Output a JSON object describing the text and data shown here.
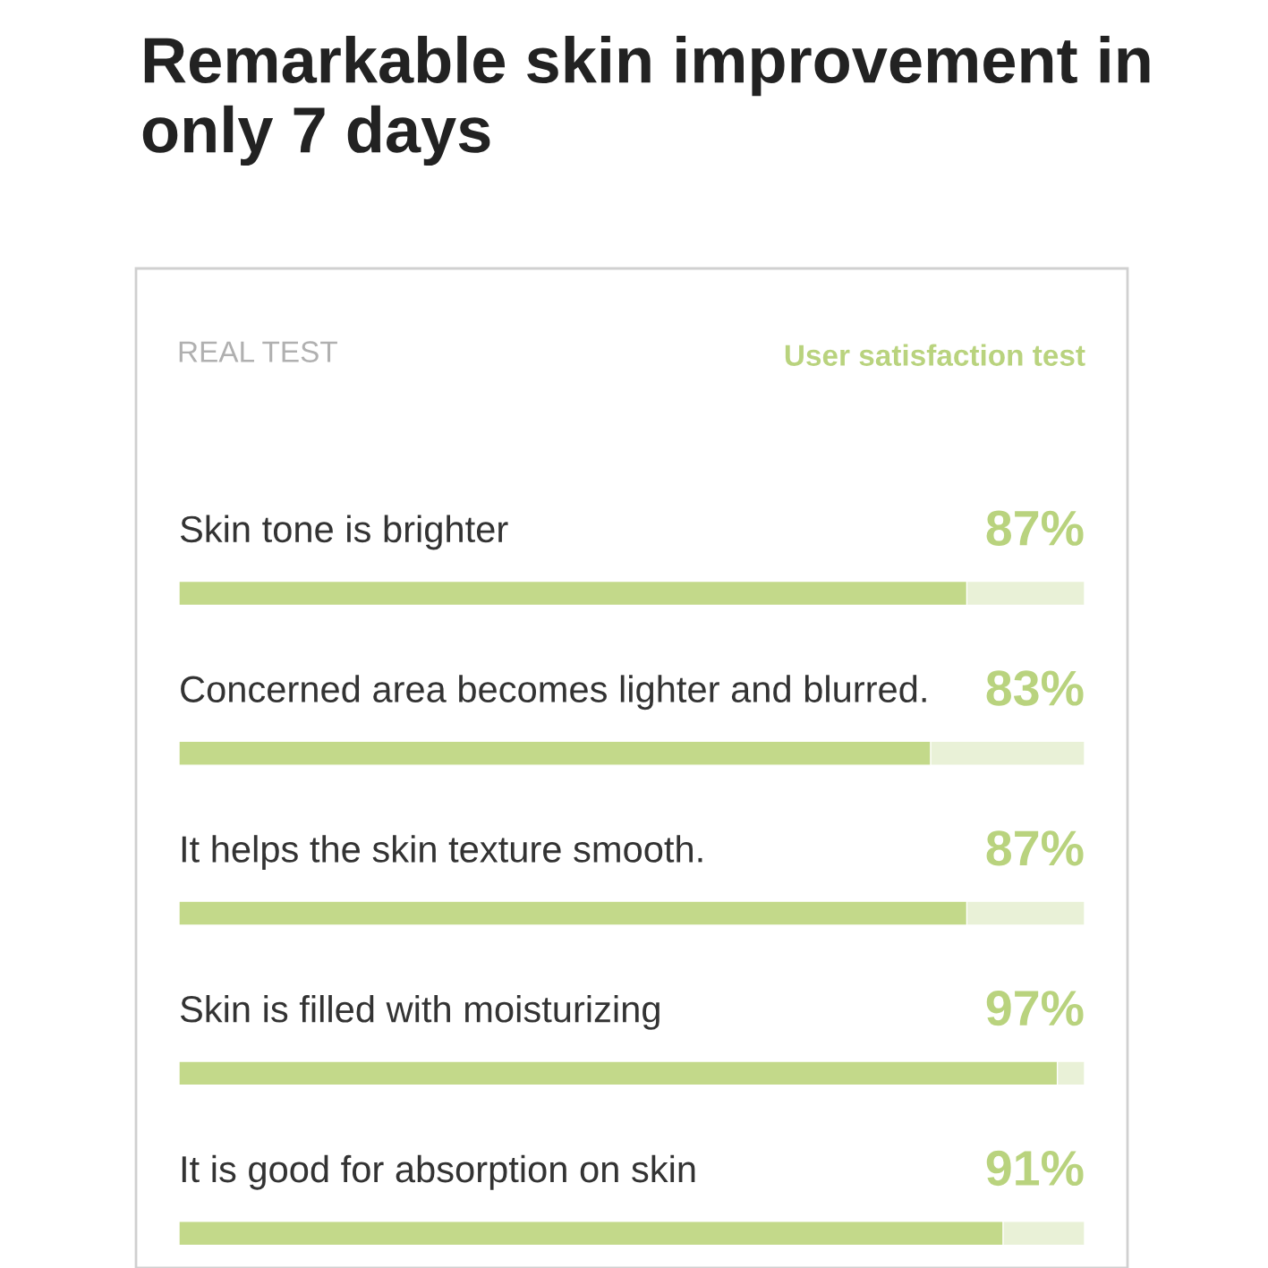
{
  "chart_data": {
    "type": "bar",
    "orientation": "horizontal",
    "title": "Remarkable skin improvement in only 7 days",
    "categories": [
      "Skin tone is brighter",
      "Concerned area becomes lighter and blurred.",
      "It helps the skin texture smooth.",
      "Skin is filled with moisturizing",
      "It is good for absorption on skin"
    ],
    "values": [
      87,
      83,
      87,
      97,
      91
    ],
    "value_labels": [
      "87%",
      "83%",
      "87%",
      "97%",
      "91%"
    ],
    "color": "#c3d98a",
    "xlim": [
      0,
      100
    ],
    "annotations": [
      "REAL TEST",
      "User satisfaction test"
    ]
  }
}
